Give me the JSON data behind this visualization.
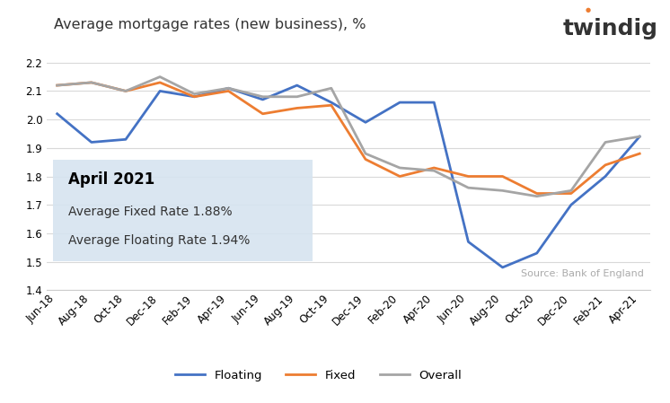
{
  "title": "Average mortgage rates (new business), %",
  "twindig_text": "twindig",
  "source_text": "Source: Bank of England",
  "annotation_title": "April 2021",
  "annotation_line1": "Average Fixed Rate 1.88%",
  "annotation_line2": "Average Floating Rate 1.94%",
  "labels": [
    "Jun-18",
    "Aug-18",
    "Oct-18",
    "Dec-18",
    "Feb-19",
    "Apr-19",
    "Jun-19",
    "Aug-19",
    "Oct-19",
    "Dec-19",
    "Feb-20",
    "Apr-20",
    "Jun-20",
    "Aug-20",
    "Oct-20",
    "Dec-20",
    "Feb-21",
    "Apr-21"
  ],
  "floating": [
    2.02,
    1.92,
    1.93,
    2.1,
    2.08,
    2.11,
    2.07,
    2.12,
    2.06,
    1.99,
    2.06,
    2.06,
    1.57,
    1.48,
    1.53,
    1.7,
    1.8,
    1.94
  ],
  "fixed": [
    2.12,
    2.13,
    2.1,
    2.13,
    2.08,
    2.1,
    2.02,
    2.04,
    2.05,
    1.86,
    1.8,
    1.83,
    1.8,
    1.8,
    1.74,
    1.74,
    1.84,
    1.88
  ],
  "overall": [
    2.12,
    2.13,
    2.1,
    2.15,
    2.09,
    2.11,
    2.08,
    2.08,
    2.11,
    1.88,
    1.83,
    1.82,
    1.76,
    1.75,
    1.73,
    1.75,
    1.92,
    1.94
  ],
  "floating_color": "#4472C4",
  "fixed_color": "#ED7D31",
  "overall_color": "#A5A5A5",
  "ylim": [
    1.4,
    2.25
  ],
  "yticks": [
    1.4,
    1.5,
    1.6,
    1.7,
    1.8,
    1.9,
    2.0,
    2.1,
    2.2
  ],
  "bg_color": "#FFFFFF",
  "annotation_bg": "#D6E4F0",
  "grid_color": "#D9D9D9"
}
